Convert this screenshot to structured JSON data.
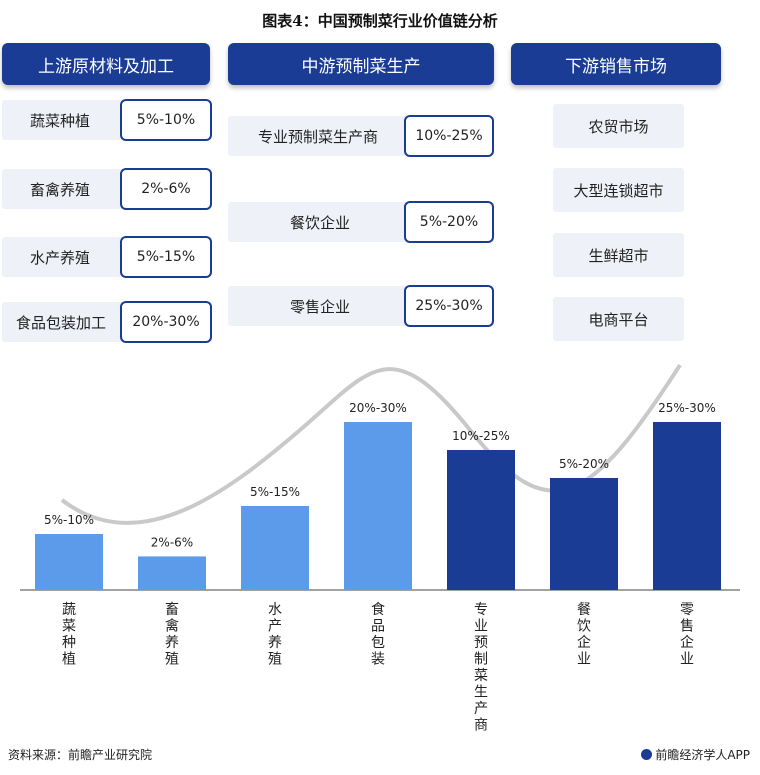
{
  "title": "图表4：中国预制菜行业价值链分析",
  "upstream": {
    "header": "上游原材料及加工",
    "items": [
      {
        "label": "蔬菜种植",
        "pct": "5%-10%"
      },
      {
        "label": "畜禽养殖",
        "pct": "2%-6%"
      },
      {
        "label": "水产养殖",
        "pct": "5%-15%"
      },
      {
        "label": "食品包装加工",
        "pct": "20%-30%"
      }
    ]
  },
  "midstream": {
    "header": "中游预制菜生产",
    "items": [
      {
        "label": "专业预制菜生产商",
        "pct": "10%-25%"
      },
      {
        "label": "餐饮企业",
        "pct": "5%-20%"
      },
      {
        "label": "零售企业",
        "pct": "25%-30%"
      }
    ]
  },
  "downstream": {
    "header": "下游销售市场",
    "items": [
      "农贸市场",
      "大型连锁超市",
      "生鲜超市",
      "电商平台"
    ]
  },
  "chart_data": {
    "type": "bar",
    "categories": [
      "蔬菜种植",
      "畜禽养殖",
      "水产养殖",
      "食品包装",
      "专业预制菜生产商",
      "餐饮企业",
      "零售企业"
    ],
    "range_labels": [
      "5%-10%",
      "2%-6%",
      "5%-15%",
      "20%-30%",
      "10%-25%",
      "5%-20%",
      "25%-30%"
    ],
    "values": [
      10,
      6,
      15,
      30,
      25,
      20,
      30
    ],
    "bar_colors": [
      "#5b9bea",
      "#5b9bea",
      "#5b9bea",
      "#5b9bea",
      "#1a3c94",
      "#1a3c94",
      "#1a3c94"
    ],
    "curve_color": "#c9c9c9",
    "ylim": [
      0,
      35
    ]
  },
  "footer": {
    "source": "资料来源：前瞻产业研究院",
    "brand": "前瞻经济学人APP"
  }
}
